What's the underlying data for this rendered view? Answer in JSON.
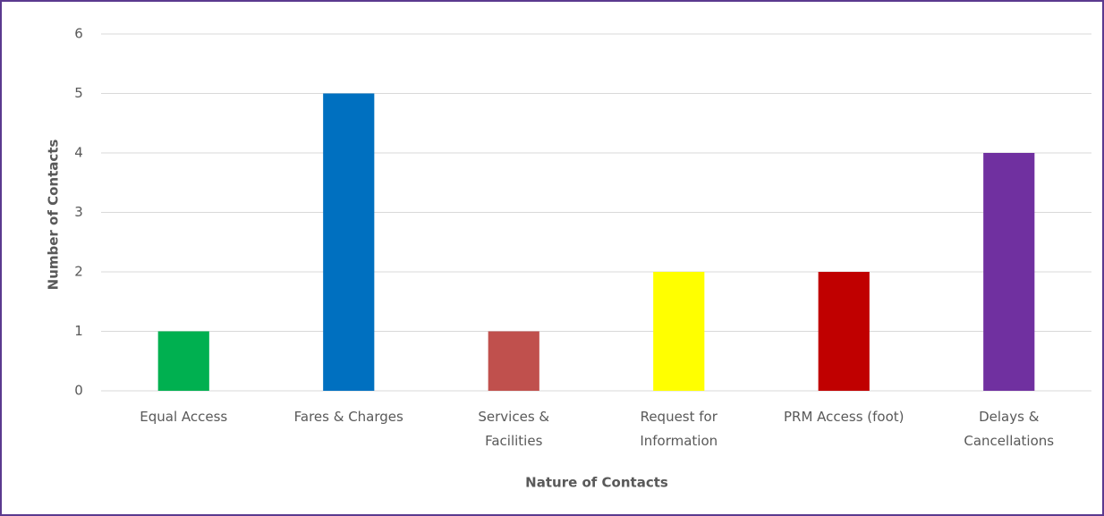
{
  "chart_data": {
    "type": "bar",
    "x_label": "Nature of Contacts",
    "y_label": "Number of Contacts",
    "categories": [
      "Equal Access",
      "Fares & Charges",
      "Services &\nFacilities",
      "Request for\nInformation",
      "PRM Access (foot)",
      "Delays &\nCancellations"
    ],
    "values": [
      1,
      5,
      1,
      2,
      2,
      4
    ],
    "colors": [
      "#00b050",
      "#0070c0",
      "#c0504d",
      "#ffff00",
      "#c00000",
      "#7030a0"
    ],
    "ylim": [
      0,
      6
    ],
    "yticks": [
      0,
      1,
      2,
      3,
      4,
      5,
      6
    ],
    "grid": true
  }
}
